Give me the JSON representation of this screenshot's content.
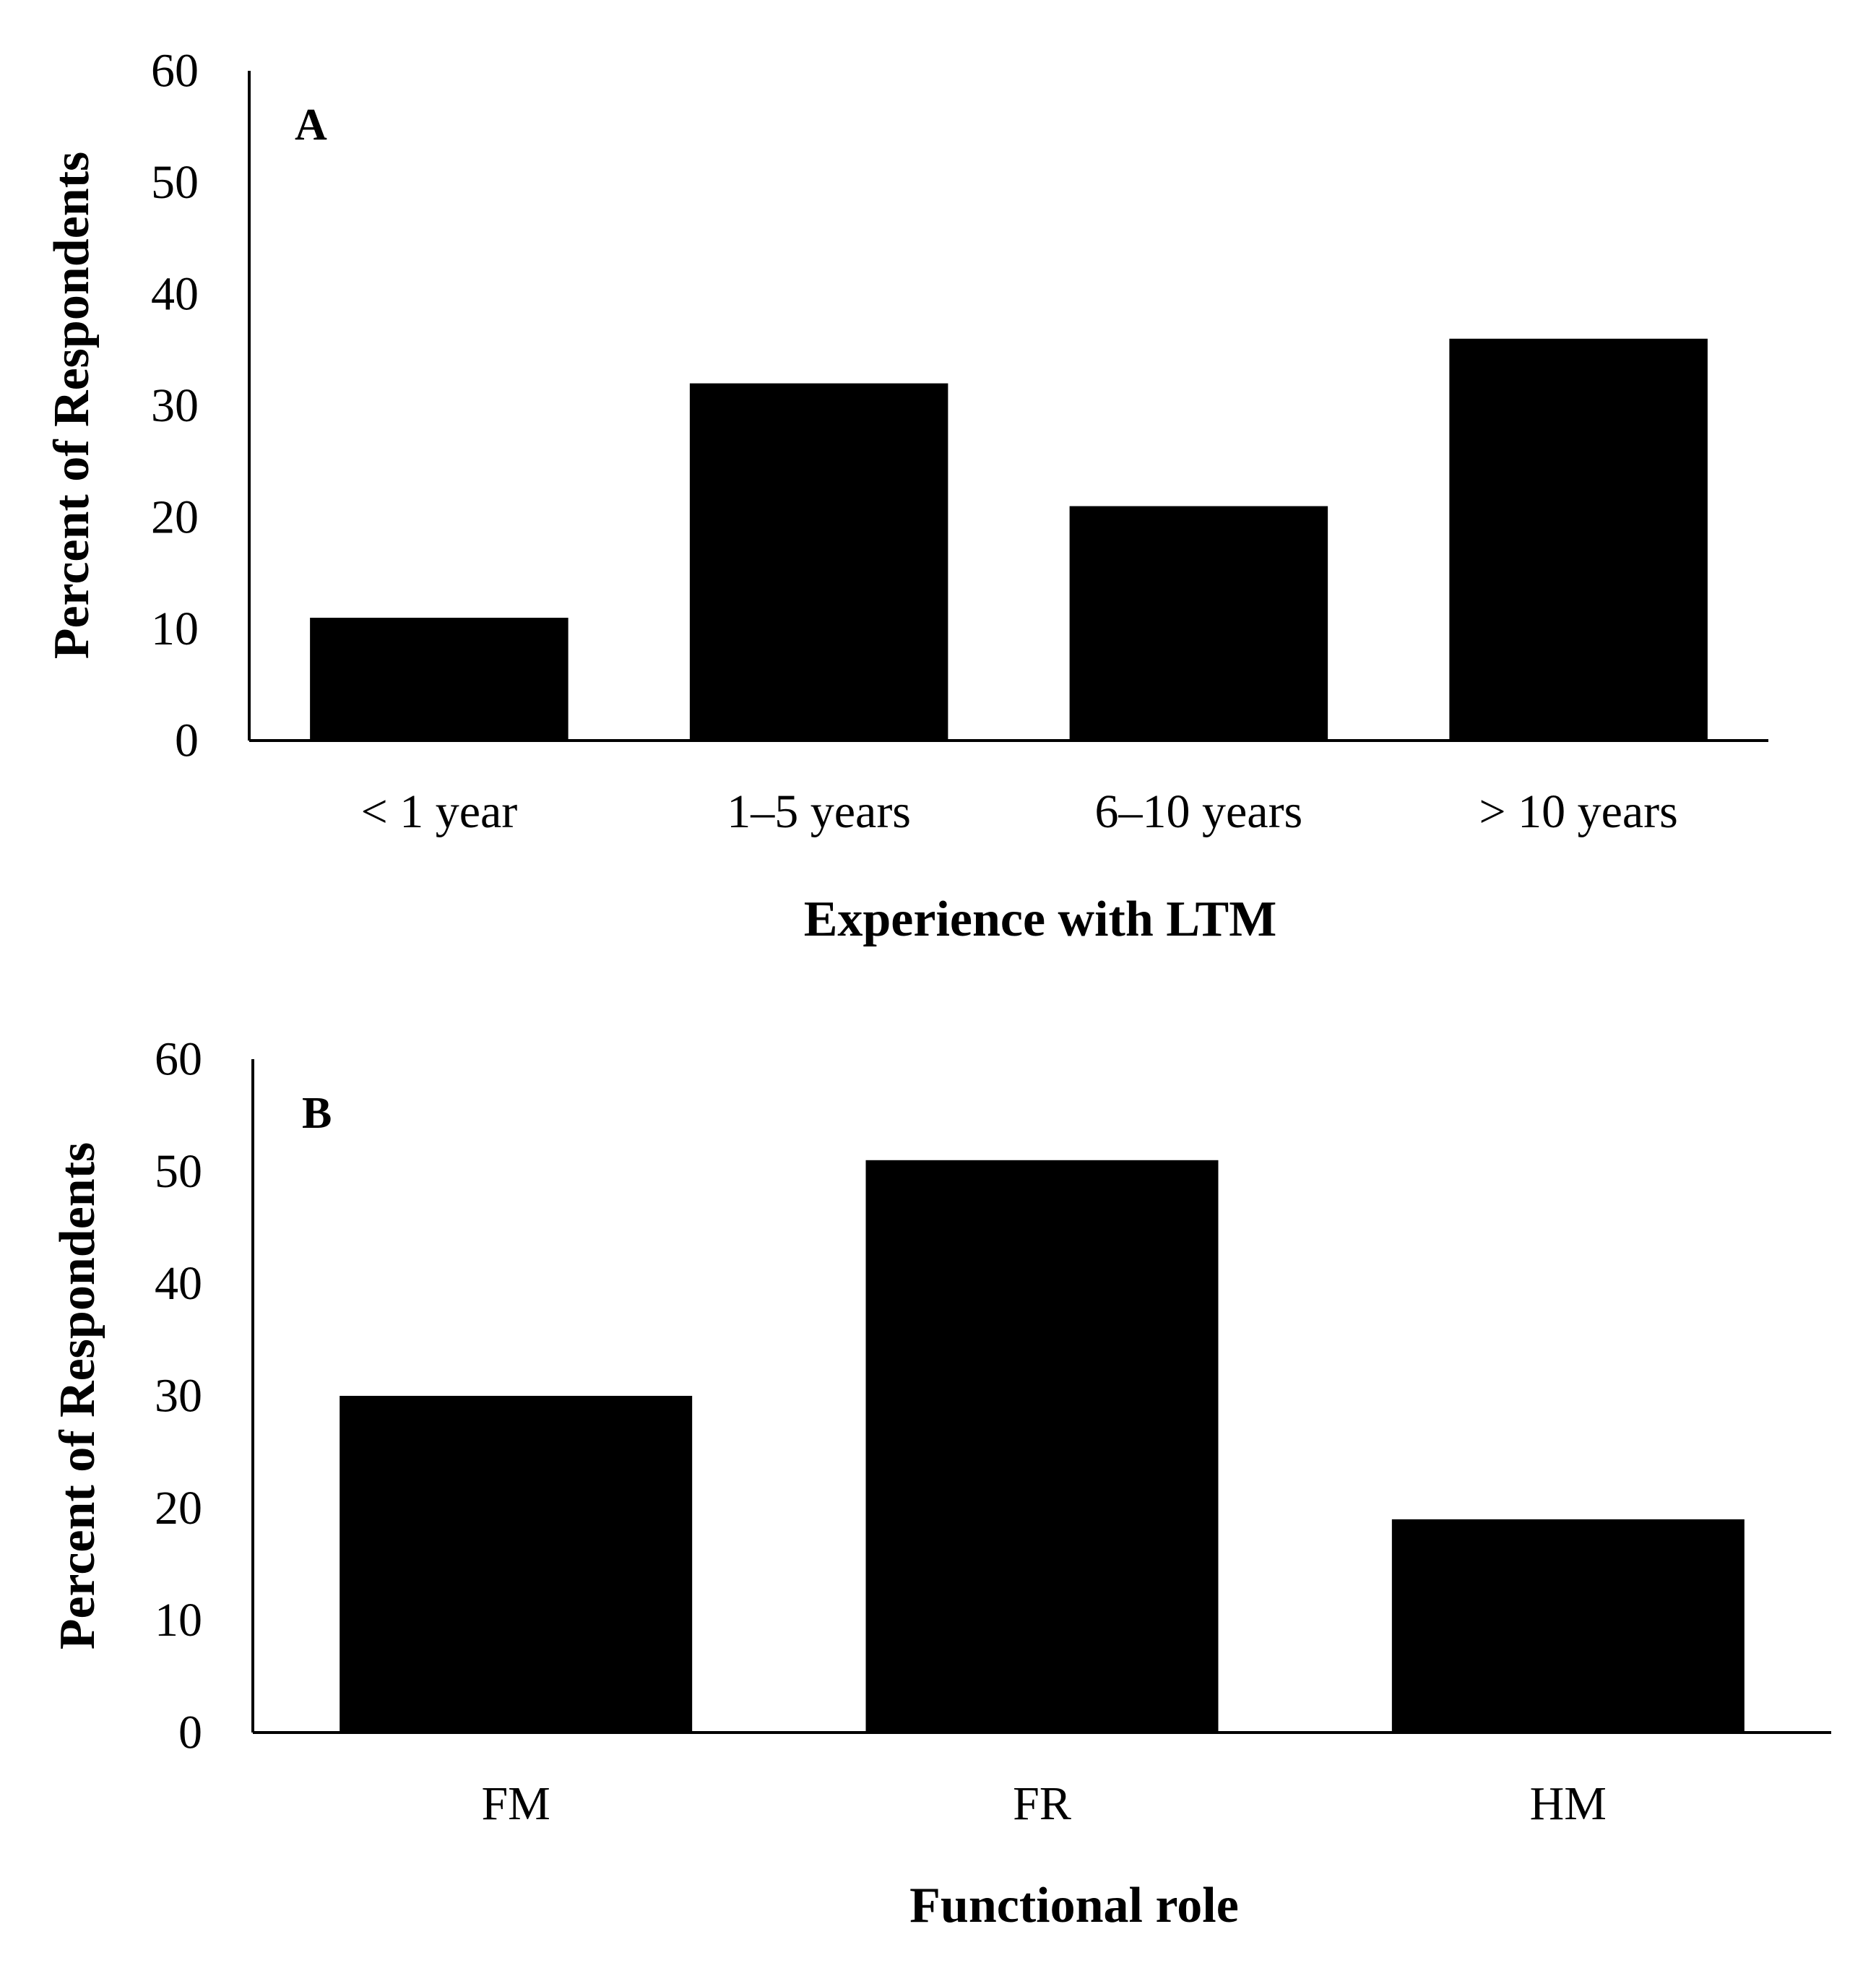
{
  "chart_data": [
    {
      "type": "bar",
      "panel_label": "A",
      "categories": [
        "< 1 year",
        "1–5 years",
        "6–10 years",
        "> 10 years"
      ],
      "values": [
        11,
        32,
        21,
        36
      ],
      "title": "",
      "xlabel": "Experience with LTM",
      "ylabel": "Percent of Respondents",
      "ylim": [
        0,
        60
      ],
      "yticks": [
        0,
        10,
        20,
        30,
        40,
        50,
        60
      ],
      "bar_color": "#000000",
      "grid": false
    },
    {
      "type": "bar",
      "panel_label": "B",
      "categories": [
        "FM",
        "FR",
        "HM"
      ],
      "values": [
        30,
        51,
        19
      ],
      "title": "",
      "xlabel": "Functional role",
      "ylabel": "Percent of Respondents",
      "ylim": [
        0,
        60
      ],
      "yticks": [
        0,
        10,
        20,
        30,
        40,
        50,
        60
      ],
      "bar_color": "#000000",
      "grid": false
    }
  ]
}
